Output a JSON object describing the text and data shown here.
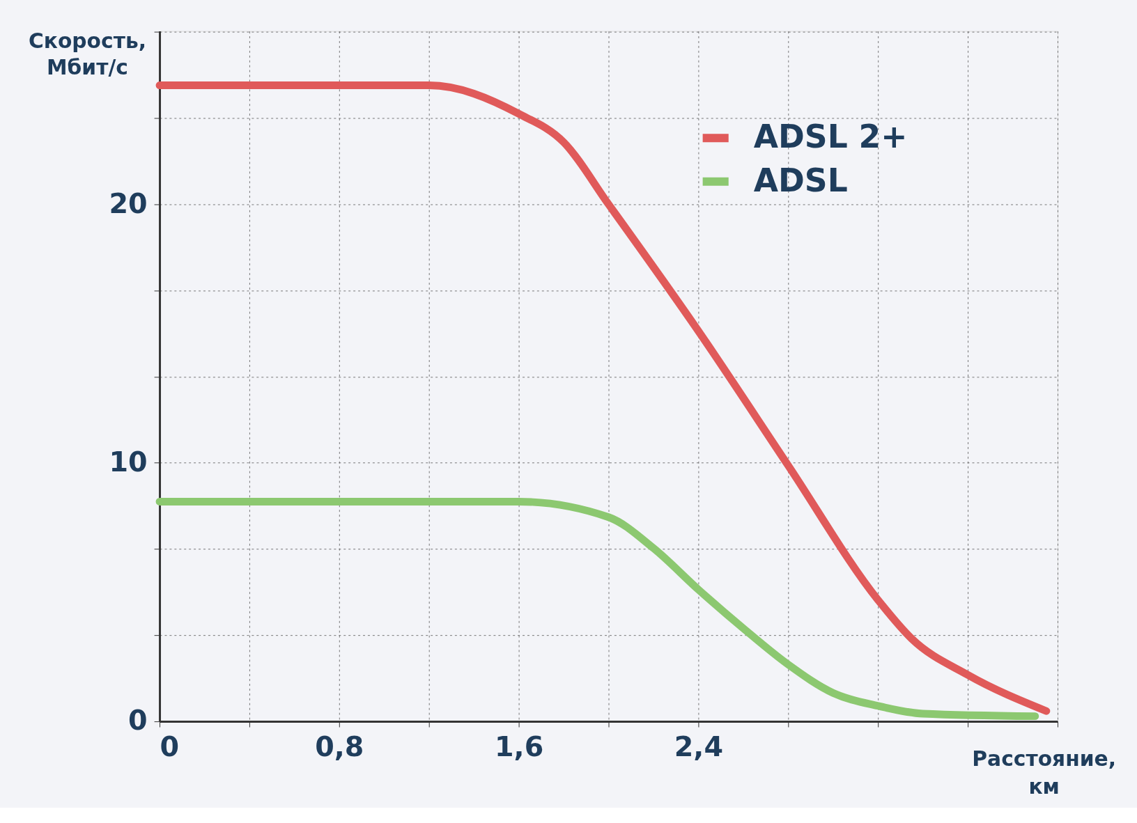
{
  "chart_data": {
    "type": "line",
    "xlabel": "Расстояние, км",
    "ylabel": "Скорость, Мбит/с",
    "xlim": [
      0,
      4.0
    ],
    "xticks": [
      0,
      {
        "value": 0.4,
        "label": null
      },
      {
        "value": 0.8,
        "label": "0,8"
      },
      {
        "value": 1.2,
        "label": null
      },
      {
        "value": 1.6,
        "label": "1,6"
      },
      {
        "value": 2.0,
        "label": null
      },
      {
        "value": 2.4,
        "label": "2,4"
      },
      {
        "value": 2.8,
        "label": null
      },
      {
        "value": 3.2,
        "label": null
      },
      {
        "value": 3.6,
        "label": null
      },
      {
        "value": 4.0,
        "label": null
      }
    ],
    "ylim": [
      0,
      26.7
    ],
    "yticks": [
      0,
      {
        "value": 3.33,
        "label": null
      },
      {
        "value": 6.67,
        "label": null
      },
      10,
      {
        "value": 13.33,
        "label": null
      },
      {
        "value": 16.67,
        "label": null
      },
      20,
      {
        "value": 23.33,
        "label": null
      },
      {
        "value": 26.67,
        "label": null
      }
    ],
    "grid": true,
    "legend": "top right",
    "line_style": "solid",
    "marker": "none",
    "series": [
      {
        "name": "ADSL 2+",
        "color": "#e05a5a",
        "x": [
          0,
          1.2,
          1.6,
          1.8,
          2.0,
          2.4,
          2.8,
          3.2,
          3.35,
          3.6,
          3.95
        ],
        "values": [
          24.6,
          24.6,
          23.5,
          22.4,
          20.0,
          15.1,
          9.9,
          4.7,
          3.2,
          1.8,
          0.4
        ]
      },
      {
        "name": "ADSL",
        "color": "#8cc870",
        "x": [
          0,
          1.6,
          2.0,
          2.2,
          2.4,
          2.6,
          2.8,
          3.0,
          3.2,
          3.4,
          3.9
        ],
        "values": [
          8.5,
          8.5,
          7.9,
          6.7,
          5.1,
          3.6,
          2.2,
          1.1,
          0.6,
          0.3,
          0.2
        ]
      }
    ]
  }
}
